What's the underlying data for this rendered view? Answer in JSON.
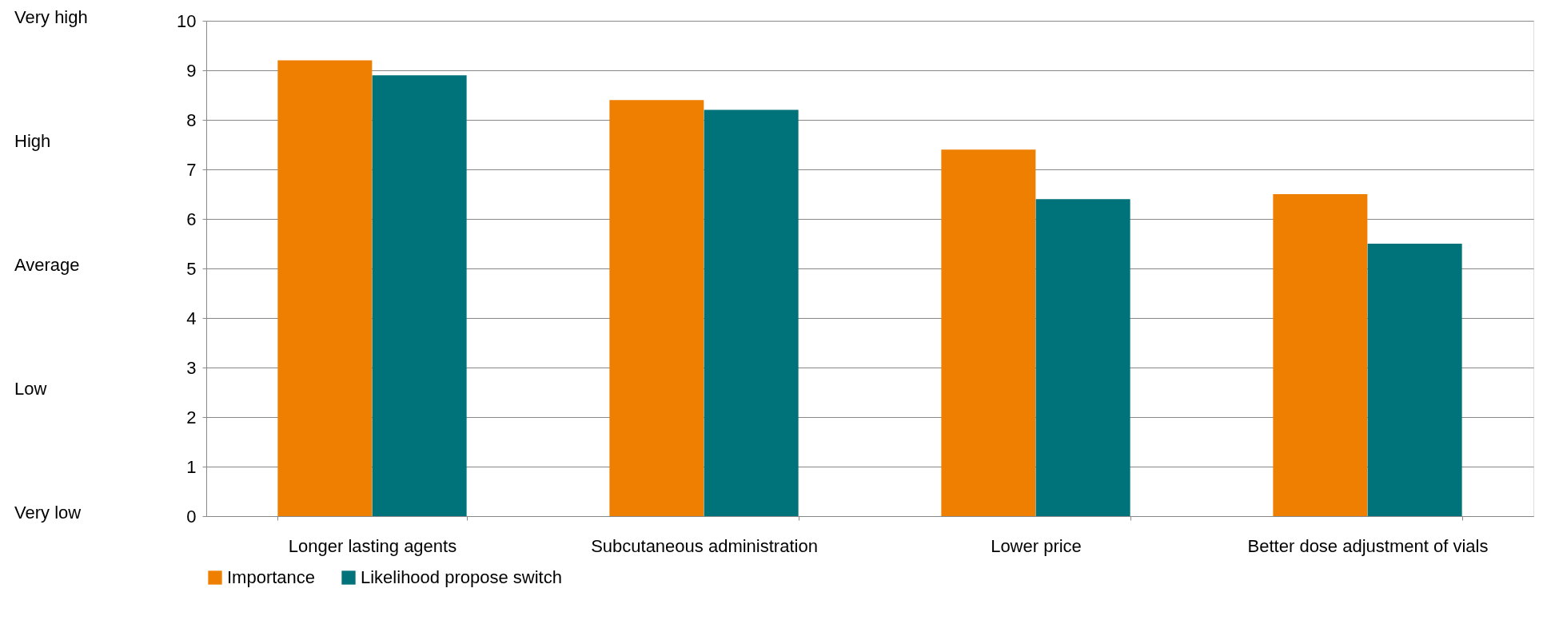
{
  "chart_data": {
    "type": "bar",
    "categories": [
      "Longer lasting agents",
      "Subcutaneous administration",
      "Lower price",
      "Better dose adjustment of vials"
    ],
    "series": [
      {
        "name": "Importance",
        "color": "#ef7f00",
        "values": [
          9.2,
          8.4,
          7.4,
          6.5
        ]
      },
      {
        "name": "Likelihood propose switch",
        "color": "#00737a",
        "values": [
          8.9,
          8.2,
          6.4,
          5.5
        ]
      }
    ],
    "ylim": [
      0,
      10
    ],
    "yticks": [
      0,
      1,
      2,
      3,
      4,
      5,
      6,
      7,
      8,
      9,
      10
    ],
    "annotations": [
      "Very high",
      "High",
      "Average",
      "Low",
      "Very low"
    ],
    "grid": "y",
    "legend": "bottom"
  }
}
